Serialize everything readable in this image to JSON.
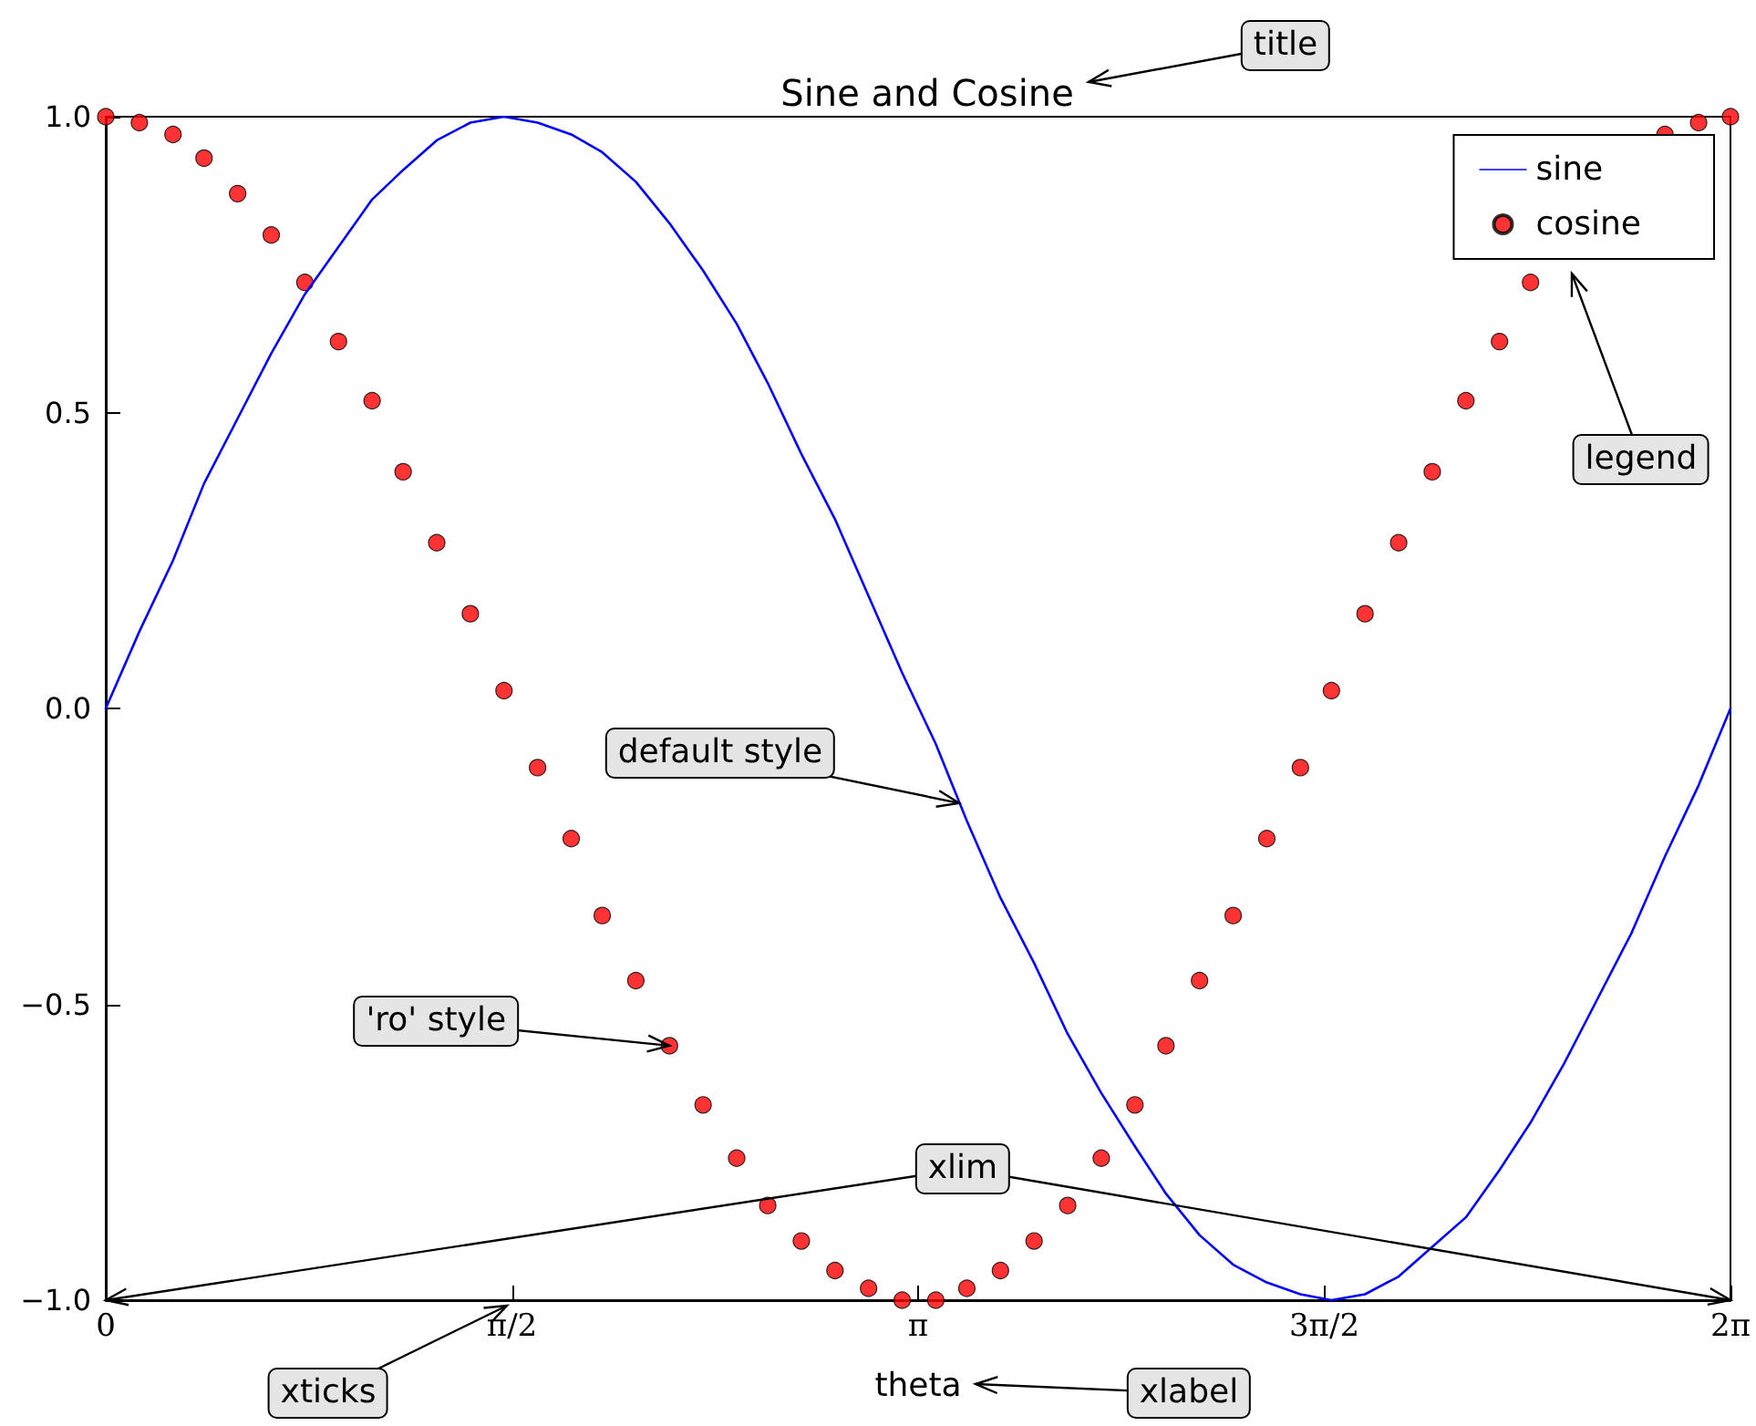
{
  "chart_data": {
    "type": "line",
    "title": "Sine and Cosine",
    "xlabel": "theta",
    "x": [
      0,
      0.13,
      0.26,
      0.38,
      0.51,
      0.64,
      0.77,
      0.9,
      1.03,
      1.15,
      1.28,
      1.41,
      1.54,
      1.67,
      1.8,
      1.92,
      2.05,
      2.18,
      2.31,
      2.44,
      2.56,
      2.69,
      2.82,
      2.95,
      3.08,
      3.21,
      3.33,
      3.46,
      3.59,
      3.72,
      3.85,
      3.98,
      4.1,
      4.23,
      4.36,
      4.49,
      4.62,
      4.74,
      4.87,
      5.0,
      5.13,
      5.26,
      5.39,
      5.51,
      5.64,
      5.77,
      5.9,
      6.03,
      6.16,
      6.2832
    ],
    "series": [
      {
        "name": "sine",
        "color": "#0000ff",
        "marker": "none",
        "values": [
          0,
          0.13,
          0.25,
          0.38,
          0.49,
          0.6,
          0.7,
          0.78,
          0.86,
          0.91,
          0.96,
          0.99,
          1.0,
          0.99,
          0.97,
          0.94,
          0.89,
          0.82,
          0.74,
          0.65,
          0.55,
          0.43,
          0.32,
          0.19,
          0.06,
          -0.06,
          -0.19,
          -0.32,
          -0.43,
          -0.55,
          -0.65,
          -0.74,
          -0.82,
          -0.89,
          -0.94,
          -0.97,
          -0.99,
          -1.0,
          -0.99,
          -0.96,
          -0.91,
          -0.86,
          -0.78,
          -0.7,
          -0.6,
          -0.49,
          -0.38,
          -0.25,
          -0.13,
          0
        ]
      },
      {
        "name": "cosine",
        "type": "scatter",
        "color": "#ff0000",
        "marker": "circle",
        "values": [
          1,
          0.99,
          0.97,
          0.93,
          0.87,
          0.8,
          0.72,
          0.62,
          0.52,
          0.4,
          0.28,
          0.16,
          0.03,
          -0.1,
          -0.22,
          -0.35,
          -0.46,
          -0.57,
          -0.67,
          -0.76,
          -0.84,
          -0.9,
          -0.95,
          -0.98,
          -1.0,
          -1.0,
          -0.98,
          -0.95,
          -0.9,
          -0.84,
          -0.76,
          -0.67,
          -0.57,
          -0.46,
          -0.35,
          -0.22,
          -0.1,
          0.03,
          0.16,
          0.28,
          0.4,
          0.52,
          0.62,
          0.72,
          null,
          null,
          null,
          0.97,
          0.99,
          1
        ]
      }
    ],
    "xlim": [
      0,
      6.2832
    ],
    "xticks": [
      {
        "value": 0,
        "label": "0"
      },
      {
        "value": 1.5708,
        "label": "π/2"
      },
      {
        "value": 3.1416,
        "label": "π"
      },
      {
        "value": 4.7124,
        "label": "3π/2"
      },
      {
        "value": 6.2832,
        "label": "2π"
      }
    ],
    "ylim": [
      -1,
      1
    ],
    "yticks": [
      {
        "value": -1,
        "label": "−1.0"
      },
      {
        "value": -0.5,
        "label": "−0.5"
      },
      {
        "value": 0,
        "label": "0.0"
      },
      {
        "value": 0.5,
        "label": "0.5"
      },
      {
        "value": 1,
        "label": "1.0"
      }
    ],
    "grid": false,
    "legend": "top right",
    "annotations": [
      "title",
      {
        "text": "default style",
        "x": 3.3,
        "y": -0.16
      },
      {
        "text": "'ro' style",
        "x": 2.18,
        "y": -0.57
      },
      "legend",
      "xlim",
      "xticks",
      "xlabel"
    ]
  }
}
